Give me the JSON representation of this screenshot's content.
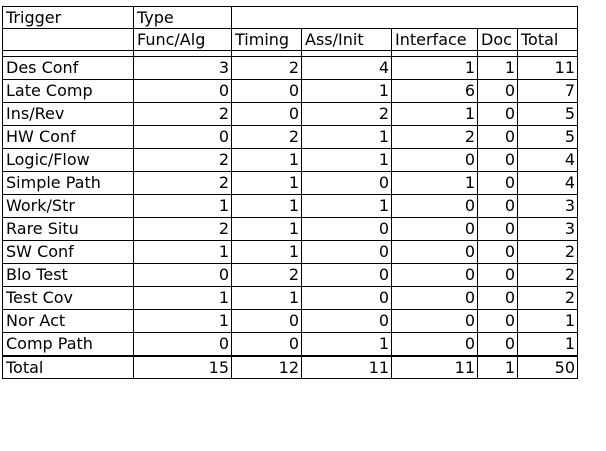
{
  "header": {
    "row1": [
      "Trigger",
      "Type",
      ""
    ],
    "row2": [
      "",
      "Func/Alg",
      "Timing",
      "Ass/Init",
      "Interface",
      "Doc",
      "Total"
    ]
  },
  "rows": [
    {
      "label": "Des Conf",
      "values": [
        3,
        2,
        4,
        1,
        1,
        11
      ]
    },
    {
      "label": "Late Comp",
      "values": [
        0,
        0,
        1,
        6,
        0,
        7
      ]
    },
    {
      "label": "Ins/Rev",
      "values": [
        2,
        0,
        2,
        1,
        0,
        5
      ]
    },
    {
      "label": "HW Conf",
      "values": [
        0,
        2,
        1,
        2,
        0,
        5
      ]
    },
    {
      "label": "Logic/Flow",
      "values": [
        2,
        1,
        1,
        0,
        0,
        4
      ]
    },
    {
      "label": "Simple Path",
      "values": [
        2,
        1,
        0,
        1,
        0,
        4
      ]
    },
    {
      "label": "Work/Str",
      "values": [
        1,
        1,
        1,
        0,
        0,
        3
      ]
    },
    {
      "label": "Rare Situ",
      "values": [
        2,
        1,
        0,
        0,
        0,
        3
      ]
    },
    {
      "label": "SW Conf",
      "values": [
        1,
        1,
        0,
        0,
        0,
        2
      ]
    },
    {
      "label": "Blo Test",
      "values": [
        0,
        2,
        0,
        0,
        0,
        2
      ]
    },
    {
      "label": "Test Cov",
      "values": [
        1,
        1,
        0,
        0,
        0,
        2
      ]
    },
    {
      "label": "Nor Act",
      "values": [
        1,
        0,
        0,
        0,
        0,
        1
      ]
    },
    {
      "label": "Comp Path",
      "values": [
        0,
        0,
        1,
        0,
        0,
        1
      ]
    }
  ],
  "total": {
    "label": "Total",
    "values": [
      15,
      12,
      11,
      11,
      1,
      50
    ]
  }
}
